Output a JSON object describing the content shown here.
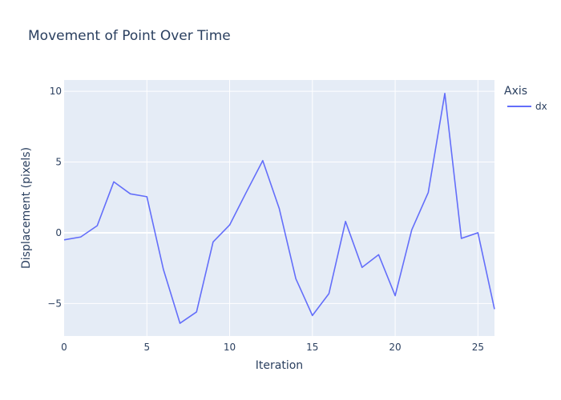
{
  "chart_data": {
    "type": "line",
    "title": "Movement of Point Over Time",
    "xlabel": "Iteration",
    "ylabel": "Displacement (pixels)",
    "xlim": [
      0,
      26
    ],
    "ylim": [
      -7.3,
      10.8
    ],
    "x_ticks": [
      0,
      5,
      10,
      15,
      20,
      25
    ],
    "y_ticks": [
      -5,
      0,
      5,
      10
    ],
    "grid": true,
    "legend": {
      "title": "Axis",
      "placement": "top-right"
    },
    "colors": {
      "plot_background": "#e5ecf6",
      "grid": "#ffffff",
      "text": "#2a3f5f"
    },
    "series": [
      {
        "name": "dx",
        "color": "#636efa",
        "x": [
          0,
          1,
          2,
          3,
          4,
          5,
          6,
          7,
          8,
          9,
          10,
          11,
          12,
          13,
          14,
          15,
          16,
          17,
          18,
          19,
          20,
          21,
          22,
          23,
          24,
          25,
          26
        ],
        "y": [
          -0.5,
          -0.3,
          0.5,
          3.6,
          2.75,
          2.55,
          -2.6,
          -6.4,
          -5.6,
          -0.65,
          0.55,
          2.85,
          5.1,
          1.7,
          -3.25,
          -5.85,
          -4.3,
          0.8,
          -2.45,
          -1.55,
          -4.45,
          0.2,
          2.85,
          9.85,
          -0.4,
          0.0,
          -5.4
        ]
      }
    ]
  }
}
